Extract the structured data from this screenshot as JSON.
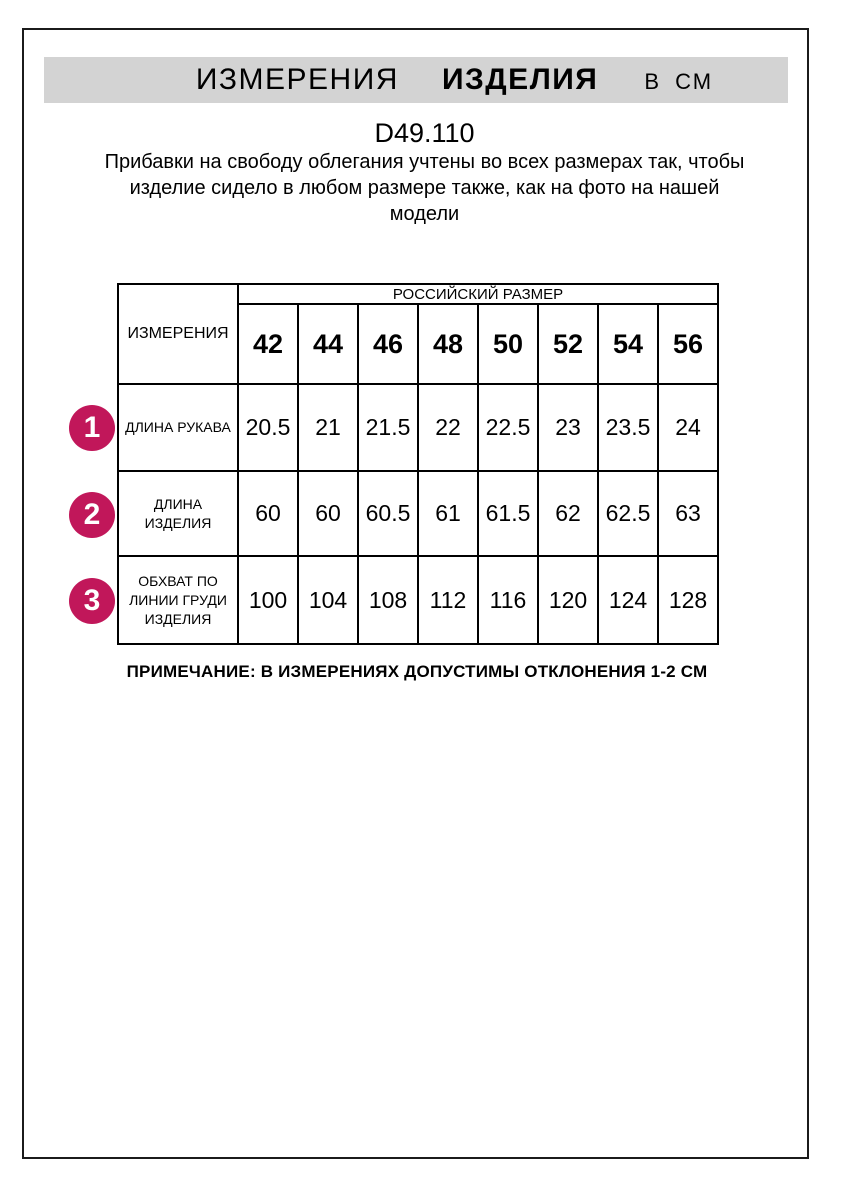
{
  "header": {
    "title_main": "ИЗМЕРЕНИЯ",
    "title_product": "ИЗДЕЛИЯ",
    "title_unit": "В СМ",
    "product_code": "D49.110",
    "description_lines": [
      "Прибавки на свободу облегания учтены во всех размерах так, чтобы",
      "изделие сидело в любом размере также, как на фото на нашей",
      "модели"
    ]
  },
  "table": {
    "corner_header": "ИЗМЕРЕНИЯ",
    "group_header": "РОССИЙСКИЙ РАЗМЕР",
    "sizes": [
      "42",
      "44",
      "46",
      "48",
      "50",
      "52",
      "54",
      "56"
    ],
    "rows": [
      {
        "num": "1",
        "label": "ДЛИНА РУКАВА",
        "values": [
          "20.5",
          "21",
          "21.5",
          "22",
          "22.5",
          "23",
          "23.5",
          "24"
        ]
      },
      {
        "num": "2",
        "label": "ДЛИНА ИЗДЕЛИЯ",
        "values": [
          "60",
          "60",
          "60.5",
          "61",
          "61.5",
          "62",
          "62.5",
          "63"
        ]
      },
      {
        "num": "3",
        "label": "ОБХВАТ ПО ЛИНИИ ГРУДИ ИЗДЕЛИЯ",
        "values": [
          "100",
          "104",
          "108",
          "112",
          "116",
          "120",
          "124",
          "128"
        ]
      }
    ]
  },
  "note": "ПРИМЕЧАНИЕ: В ИЗМЕРЕНИЯХ ДОПУСТИМЫ ОТКЛОНЕНИЯ 1-2 СМ",
  "colors": {
    "accent": "#c1175a",
    "band_bg": "#d3d3d3",
    "border": "#000000"
  }
}
